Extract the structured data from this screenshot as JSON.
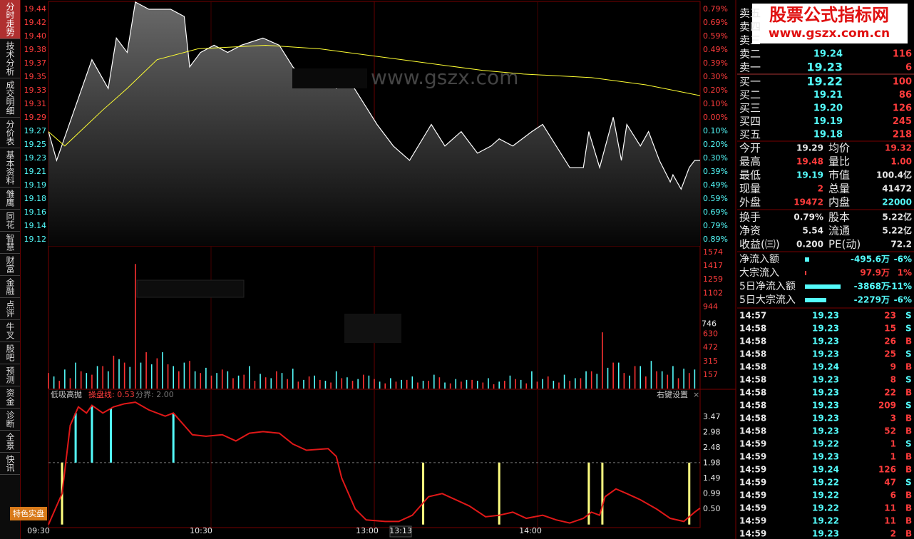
{
  "sidebar": {
    "tabs": [
      "分时走势",
      "技术分析",
      "成交明细",
      "分价表",
      "基本资料",
      "雏鹰",
      "同花",
      "智慧",
      "财富",
      "金融",
      "点评",
      "牛叉",
      "股吧",
      "预测",
      "资金",
      "诊断",
      "全景",
      "快讯"
    ],
    "button": "特色实盘"
  },
  "price_chart": {
    "ylim": [
      19.12,
      19.44
    ],
    "price_labels": [
      19.44,
      19.42,
      {
        "value": 19.4,
        "label": "19.40"
      },
      19.38,
      19.37,
      19.35,
      19.33,
      19.31,
      19.29,
      19.27,
      19.25,
      19.23,
      19.21,
      19.19,
      19.18,
      19.16,
      19.14,
      19.12
    ],
    "percent_labels": [
      "0.79%",
      "0.69%",
      "0.59%",
      "0.49%",
      "0.39%",
      "0.30%",
      "0.20%",
      "0.10%",
      "0.00%",
      "0.10%",
      "0.20%",
      "0.30%",
      "0.39%",
      "0.49%",
      "0.59%",
      "0.69%",
      "0.79%",
      "0.89%"
    ],
    "price": {
      "color": "#ffffff",
      "x": [
        0,
        3,
        16,
        22,
        25,
        29,
        32,
        37,
        45,
        50,
        52,
        56,
        61,
        66,
        71,
        79,
        85,
        90,
        95,
        100,
        106,
        111,
        116,
        121,
        127,
        133,
        141,
        146,
        152,
        158,
        163,
        166,
        171,
        178,
        182,
        187,
        192,
        197,
        199,
        203,
        208,
        211,
        213,
        218,
        221,
        225,
        229,
        230,
        233,
        236,
        238,
        240
      ],
      "values": [
        19.27,
        19.23,
        19.37,
        19.33,
        19.4,
        19.38,
        19.45,
        19.44,
        19.44,
        19.43,
        19.36,
        19.38,
        19.39,
        19.38,
        19.39,
        19.4,
        19.39,
        19.36,
        19.34,
        19.35,
        19.33,
        19.34,
        19.31,
        19.28,
        19.25,
        19.23,
        19.28,
        19.25,
        19.27,
        19.24,
        19.25,
        19.26,
        19.25,
        19.27,
        19.28,
        19.25,
        19.22,
        19.22,
        19.27,
        19.22,
        19.29,
        19.23,
        19.28,
        19.25,
        19.27,
        19.23,
        19.2,
        19.21,
        19.19,
        19.22,
        19.23,
        19.23
      ]
    },
    "average": {
      "color": "#ffff33",
      "x": [
        0,
        6,
        20,
        29,
        40,
        55,
        80,
        100,
        130,
        160,
        175,
        200,
        220,
        240
      ],
      "values": [
        19.27,
        19.25,
        19.3,
        19.33,
        19.37,
        19.385,
        19.39,
        19.385,
        19.37,
        19.355,
        19.35,
        19.345,
        19.335,
        19.32
      ]
    },
    "watermark": "www.gszx.com"
  },
  "volume_chart": {
    "ticks": [
      1574,
      1417,
      1259,
      1102,
      944,
      630,
      472,
      315,
      157
    ],
    "current": 746,
    "series": [
      {
        "color": "#ff3232",
        "x": [
          0,
          4,
          8,
          12,
          16,
          20,
          24,
          28,
          32,
          36,
          40,
          44,
          48,
          52,
          56,
          60,
          64,
          68,
          72,
          76,
          80,
          84,
          88,
          92,
          96,
          100,
          104,
          108,
          112,
          116,
          120,
          124,
          128,
          132,
          136,
          140,
          144,
          148,
          152,
          156,
          160,
          164,
          168,
          172,
          176,
          180,
          184,
          188,
          192,
          196,
          200,
          204,
          208,
          212,
          216,
          220,
          224,
          228,
          232,
          236
        ],
        "values": [
          180,
          90,
          120,
          200,
          160,
          260,
          380,
          300,
          1440,
          420,
          350,
          280,
          200,
          320,
          180,
          150,
          220,
          120,
          160,
          90,
          130,
          200,
          110,
          80,
          140,
          100,
          70,
          120,
          90,
          160,
          110,
          60,
          80,
          100,
          70,
          90,
          130,
          60,
          80,
          100,
          70,
          50,
          90,
          110,
          60,
          80,
          140,
          70,
          90,
          120,
          200,
          650,
          300,
          180,
          260,
          140,
          200,
          160,
          120,
          180
        ]
      },
      {
        "color": "#54fcfc",
        "x": [
          2,
          6,
          10,
          14,
          18,
          22,
          26,
          30,
          34,
          38,
          42,
          46,
          50,
          54,
          58,
          62,
          66,
          70,
          74,
          78,
          82,
          86,
          90,
          94,
          98,
          102,
          106,
          110,
          114,
          118,
          122,
          126,
          130,
          134,
          138,
          142,
          146,
          150,
          154,
          158,
          162,
          166,
          170,
          174,
          178,
          182,
          186,
          190,
          194,
          198,
          202,
          206,
          210,
          214,
          218,
          222,
          226,
          230,
          234,
          238
        ],
        "values": [
          140,
          220,
          300,
          180,
          260,
          200,
          340,
          250,
          300,
          280,
          420,
          260,
          300,
          200,
          240,
          180,
          200,
          150,
          260,
          170,
          120,
          180,
          230,
          100,
          150,
          90,
          200,
          130,
          110,
          150,
          80,
          120,
          100,
          140,
          90,
          160,
          70,
          110,
          100,
          90,
          120,
          80,
          150,
          100,
          200,
          110,
          90,
          160,
          120,
          200,
          170,
          240,
          300,
          150,
          260,
          320,
          200,
          260,
          230,
          220
        ]
      }
    ]
  },
  "indicator": {
    "title": "低吸高抛",
    "line_label": "操盘线: 0.53",
    "threshold_label": "分界: 2.00",
    "threshold": 2,
    "settings": "右键设置",
    "close": "×",
    "ticks": [
      3.47,
      2.98,
      2.48,
      1.98,
      1.49,
      0.99,
      {
        "value": 0.5,
        "label": "0.50"
      }
    ],
    "line": {
      "color": "#e01818",
      "x": [
        0,
        5,
        8,
        11,
        14,
        16,
        20,
        24,
        28,
        32,
        37,
        43,
        46,
        50,
        53,
        58,
        64,
        69,
        74,
        79,
        85,
        90,
        95,
        103,
        106,
        108,
        111,
        113,
        117,
        124,
        129,
        134,
        140,
        145,
        150,
        155,
        161,
        166,
        171,
        176,
        182,
        187,
        192,
        197,
        200,
        203,
        205,
        209,
        213,
        218,
        224,
        229,
        234,
        238,
        240
      ],
      "values": [
        0,
        1.0,
        3.2,
        3.8,
        3.6,
        3.85,
        3.6,
        3.8,
        3.9,
        3.95,
        3.7,
        3.5,
        3.6,
        3.2,
        2.9,
        2.85,
        2.9,
        2.7,
        2.95,
        3.0,
        2.95,
        2.6,
        2.4,
        2.45,
        2.2,
        1.5,
        0.9,
        0.5,
        0.15,
        0.1,
        0.1,
        0.3,
        0.9,
        1.0,
        0.8,
        0.6,
        0.25,
        0.3,
        0.4,
        0.2,
        0.3,
        0.15,
        0.05,
        0.2,
        0.4,
        0.3,
        0.9,
        1.15,
        1.0,
        0.8,
        0.5,
        0.2,
        0.1,
        0.4,
        0.53
      ]
    },
    "buy_signals": {
      "color": "#54fcfc",
      "x": [
        10,
        16,
        23,
        46
      ]
    },
    "sell_signals": {
      "color": "#ffff80",
      "x": [
        5,
        138,
        166,
        199,
        204,
        236
      ]
    }
  },
  "time_axis": [
    "09:30",
    "10:30",
    "13:00",
    "13:13",
    "14:00"
  ],
  "logo": {
    "title": "股票公式指标网",
    "url": "www.gszx.com.cn"
  },
  "order_book": {
    "asks": [
      {
        "label": "卖五"
      },
      {
        "label": "卖四"
      },
      {
        "label": "卖三"
      },
      {
        "label": "卖二",
        "price": "19.24",
        "volume": "116"
      },
      {
        "label": "卖一",
        "price": "19.23",
        "volume": "6"
      }
    ],
    "bids": [
      {
        "label": "买一",
        "price": "19.22",
        "volume": "100"
      },
      {
        "label": "买二",
        "price": "19.21",
        "volume": "86"
      },
      {
        "label": "买三",
        "price": "19.20",
        "volume": "126"
      },
      {
        "label": "买四",
        "price": "19.19",
        "volume": "245"
      },
      {
        "label": "买五",
        "price": "19.18",
        "volume": "218"
      }
    ]
  },
  "stats": [
    [
      "今开",
      "19.29",
      "均价",
      "19.32"
    ],
    [
      "最高",
      "19.48",
      "量比",
      "1.00"
    ],
    [
      "最低",
      "19.19",
      "市值",
      "100.4亿"
    ],
    [
      "现量",
      "2",
      "总量",
      "41472"
    ],
    [
      "外盘",
      "19472",
      "内盘",
      "22000"
    ],
    [
      "换手",
      "0.79%",
      "股本",
      "5.22亿"
    ],
    [
      "净资",
      "5.54",
      "流通",
      "5.22亿"
    ],
    [
      "收益(㈢)",
      "0.200",
      "PE(动)",
      "72.2"
    ]
  ],
  "flows": [
    {
      "label": "净流入额",
      "amount": "-495.6万",
      "percent": "-6%"
    },
    {
      "label": "大宗流入",
      "amount": "97.9万",
      "percent": "1%"
    },
    {
      "label": "5日净流入额",
      "amount": "-3868万",
      "percent": "-11%"
    },
    {
      "label": "5日大宗流入",
      "amount": "-2279万",
      "percent": "-6%"
    }
  ],
  "trades": [
    [
      "14:57",
      "19.23",
      "23",
      "S"
    ],
    [
      "14:58",
      "19.23",
      "15",
      "S"
    ],
    [
      "14:58",
      "19.23",
      "26",
      "B"
    ],
    [
      "14:58",
      "19.23",
      "25",
      "S"
    ],
    [
      "14:58",
      "19.24",
      "9",
      "B"
    ],
    [
      "14:58",
      "19.23",
      "8",
      "S"
    ],
    [
      "14:58",
      "19.23",
      "22",
      "B"
    ],
    [
      "14:58",
      "19.23",
      "209",
      "S"
    ],
    [
      "14:58",
      "19.23",
      "3",
      "B"
    ],
    [
      "14:58",
      "19.23",
      "52",
      "B"
    ],
    [
      "14:59",
      "19.22",
      "1",
      "S"
    ],
    [
      "14:59",
      "19.23",
      "1",
      "B"
    ],
    [
      "14:59",
      "19.24",
      "126",
      "B"
    ],
    [
      "14:59",
      "19.22",
      "47",
      "S"
    ],
    [
      "14:59",
      "19.22",
      "6",
      "B"
    ],
    [
      "14:59",
      "19.22",
      "11",
      "B"
    ],
    [
      "14:59",
      "19.22",
      "11",
      "B"
    ],
    [
      "14:59",
      "19.23",
      "2",
      "B"
    ]
  ]
}
